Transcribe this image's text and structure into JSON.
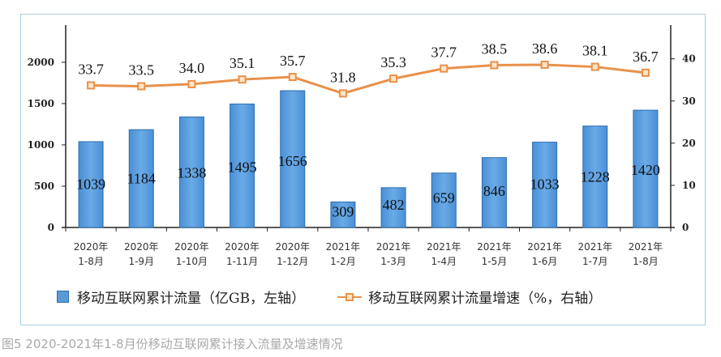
{
  "chart_data": {
    "type": "bar+line",
    "categories": [
      "2020年\n1-8月",
      "2020年\n1-9月",
      "2020年\n1-10月",
      "2020年\n1-11月",
      "2020年\n1-12月",
      "2021年\n1-2月",
      "2021年\n1-3月",
      "2021年\n1-4月",
      "2021年\n1-5月",
      "2021年\n1-6月",
      "2021年\n1-7月",
      "2021年\n1-8月"
    ],
    "series": [
      {
        "name": "移动互联网累计流量（亿GB，左轴）",
        "type": "bar",
        "axis": "left",
        "values": [
          1039,
          1184,
          1338,
          1495,
          1656,
          309,
          482,
          659,
          846,
          1033,
          1228,
          1420
        ],
        "color": "#5b9bd5"
      },
      {
        "name": "移动互联网累计流量增速（%，右轴）",
        "type": "line",
        "axis": "right",
        "values": [
          "33.7",
          "33.5",
          "34.0",
          "35.1",
          "35.7",
          "31.8",
          "35.3",
          "37.7",
          "38.5",
          "38.6",
          "38.1",
          "36.7"
        ],
        "color": "#e8914a"
      }
    ],
    "left_axis": {
      "ticks": [
        0,
        500,
        1000,
        1500,
        2000
      ],
      "ylim": [
        0,
        2450
      ]
    },
    "right_axis": {
      "ticks": [
        0,
        10,
        20,
        30,
        40
      ],
      "ylim": [
        0,
        48
      ]
    },
    "grid": false,
    "legend": "bottom",
    "caption": "图5 2020-2021年1-8月份移动互联网累计接入流量及增速情况"
  }
}
